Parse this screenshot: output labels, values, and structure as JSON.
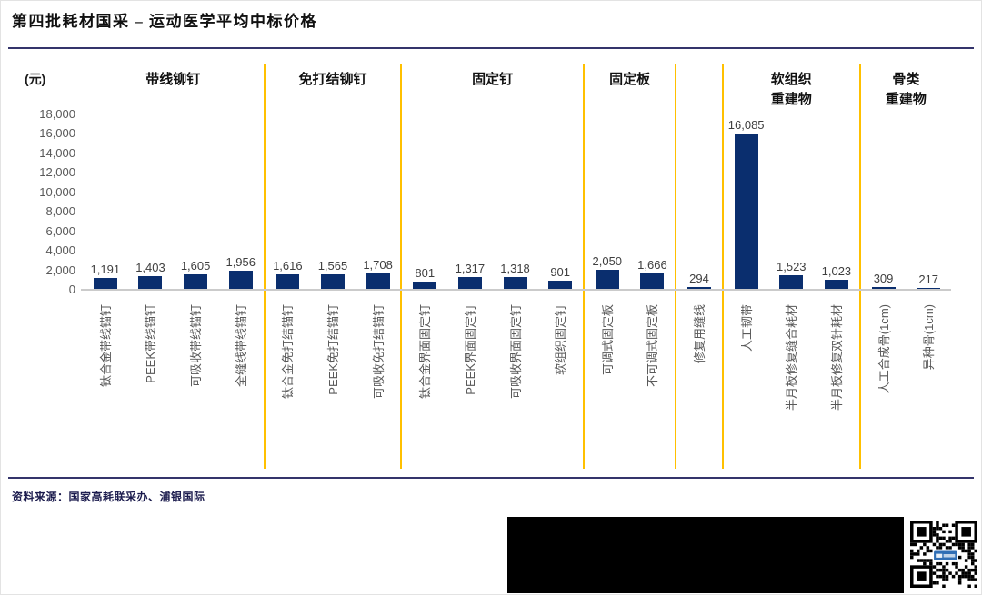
{
  "title": "第四批耗材国采 – 运动医学平均中标价格",
  "y_axis": {
    "unit_label": "(元)",
    "ticks": [
      "18,000",
      "16,000",
      "14,000",
      "12,000",
      "10,000",
      "8,000",
      "6,000",
      "4,000",
      "2,000",
      "0"
    ]
  },
  "chart_data": {
    "type": "bar",
    "title": "第四批耗材国采 – 运动医学平均中标价格",
    "ylabel": "(元)",
    "ylim": [
      0,
      18000
    ],
    "grid": false,
    "legend": false,
    "groups": [
      {
        "label": "带线铆钉",
        "bars": [
          {
            "category": "钛合金带线锚钉",
            "value": 1191,
            "label": "1,191"
          },
          {
            "category": "PEEK带线锚钉",
            "value": 1403,
            "label": "1,403"
          },
          {
            "category": "可吸收带线锚钉",
            "value": 1605,
            "label": "1,605"
          },
          {
            "category": "全缝线带线锚钉",
            "value": 1956,
            "label": "1,956"
          }
        ]
      },
      {
        "label": "免打结铆钉",
        "bars": [
          {
            "category": "钛合金免打结锚钉",
            "value": 1616,
            "label": "1,616"
          },
          {
            "category": "PEEK免打结锚钉",
            "value": 1565,
            "label": "1,565"
          },
          {
            "category": "可吸收免打结锚钉",
            "value": 1708,
            "label": "1,708"
          }
        ]
      },
      {
        "label": "固定钉",
        "bars": [
          {
            "category": "钛合金界面固定钉",
            "value": 801,
            "label": "801"
          },
          {
            "category": "PEEK界面固定钉",
            "value": 1317,
            "label": "1,317"
          },
          {
            "category": "可吸收界面固定钉",
            "value": 1318,
            "label": "1,318"
          },
          {
            "category": "软组织固定钉",
            "value": 901,
            "label": "901"
          }
        ]
      },
      {
        "label": "固定板",
        "bars": [
          {
            "category": "可调式固定板",
            "value": 2050,
            "label": "2,050"
          },
          {
            "category": "不可调式固定板",
            "value": 1666,
            "label": "1,666"
          }
        ]
      },
      {
        "label": "",
        "bars": [
          {
            "category": "修复用缝线",
            "value": 294,
            "label": "294"
          }
        ]
      },
      {
        "label": "软组织\n重建物",
        "bars": [
          {
            "category": "人工韧带",
            "value": 16085,
            "label": "16,085"
          },
          {
            "category": "半月板修复缝合耗材",
            "value": 1523,
            "label": "1,523"
          },
          {
            "category": "半月板修复双针耗材",
            "value": 1023,
            "label": "1,023"
          }
        ]
      },
      {
        "label": "骨类\n重建物",
        "bars": [
          {
            "category": "人工合成骨(1cm)",
            "value": 309,
            "label": "309"
          },
          {
            "category": "异种骨(1cm)",
            "value": 217,
            "label": "217"
          }
        ]
      }
    ]
  },
  "footer": {
    "source": "资料来源：国家高耗联采办、浦银国际"
  },
  "colors": {
    "bar": "#0a2e6e",
    "group_divider": "#ffc000",
    "rule": "#34346b",
    "axis_line": "#cbcbcb",
    "tick_text": "#595959",
    "value_text": "#3f3f3f",
    "source_text": "#1c1c4e",
    "qr_logo": "#2f6eb5"
  }
}
